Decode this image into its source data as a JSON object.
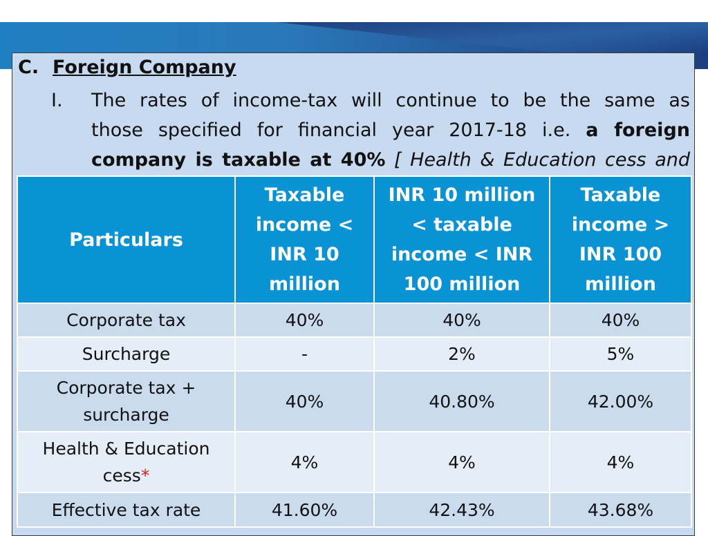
{
  "section": {
    "letter": "C.",
    "title": "Foreign Company"
  },
  "paragraph": {
    "number": "I.",
    "line1": "The rates of income-tax will continue to be the same as",
    "line2_plain": "those specified for financial year 2017-18 i.e. ",
    "line2_bold": "a foreign",
    "line3_bold": "company is taxable at 40%",
    "line3_italic": " [ Health &  Education cess and"
  },
  "table": {
    "headers": [
      "Particulars",
      "Taxable income < INR 10 million",
      "INR 10 million < taxable income < INR 100 million",
      "Taxable income > INR 100 million"
    ],
    "rows": [
      {
        "label": "Corporate tax",
        "values": [
          "40%",
          "40%",
          "40%"
        ]
      },
      {
        "label": "Surcharge",
        "values": [
          "-",
          "2%",
          "5%"
        ]
      },
      {
        "label": "Corporate tax + surcharge",
        "values": [
          "40%",
          "40.80%",
          "42.00%"
        ]
      },
      {
        "label": "Health & Education cess",
        "label_mark": "*",
        "values": [
          "4%",
          "4%",
          "4%"
        ]
      },
      {
        "label": "Effective tax rate",
        "values": [
          "41.60%",
          "42.43%",
          "43.68%"
        ]
      }
    ]
  },
  "colors": {
    "header_bg": "#0a93d4",
    "row_dark": "#c9dbec",
    "row_light": "#e5edf6",
    "box_bg": "#c8daf0",
    "asterisk": "#e0201b"
  }
}
